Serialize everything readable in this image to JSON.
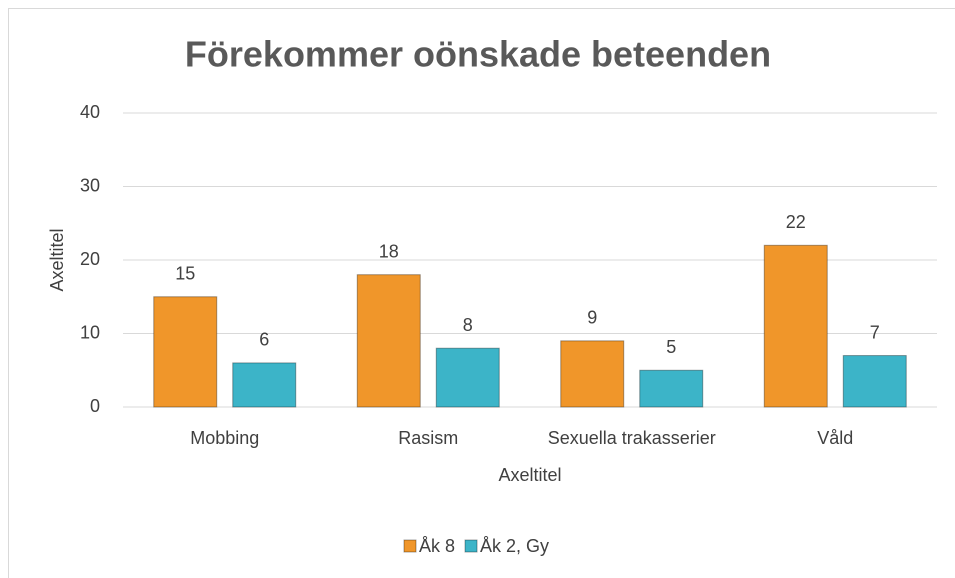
{
  "chart_data": {
    "type": "bar",
    "title": "Förekommer oönskade beteenden",
    "x_label": "Axeltitel",
    "y_label": "Axeltitel",
    "categories": [
      "Mobbing",
      "Rasism",
      "Sexuella trakasserier",
      "Våld"
    ],
    "series": [
      {
        "name": "Åk 8",
        "color": "#f0962a",
        "values": [
          15,
          18,
          9,
          22
        ]
      },
      {
        "name": "Åk 2, Gy",
        "color": "#3cb4c8",
        "values": [
          6,
          8,
          5,
          7
        ]
      }
    ],
    "ylim": [
      0,
      40
    ],
    "yticks": [
      0,
      10,
      20,
      30,
      40
    ],
    "grid": true,
    "legend": "bottom"
  }
}
